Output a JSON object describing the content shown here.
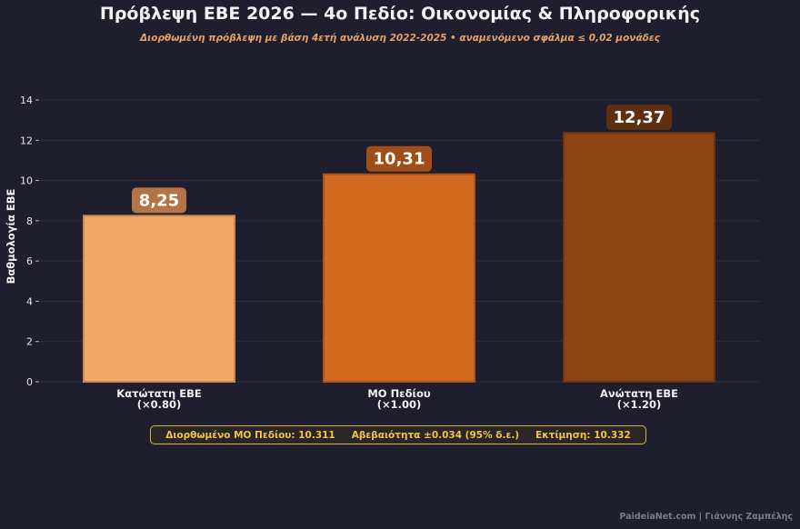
{
  "chart_data": {
    "type": "bar",
    "title": "Πρόβλεψη ΕΒΕ 2026 — 4ο Πεδίο: Οικονομίας & Πληροφορικής",
    "subtitle": "Διορθωμένη πρόβλεψη με βάση 4ετή ανάλυση 2022-2025  •  αναμενόμενο σφάλμα ≤ 0,02 μονάδες",
    "ylabel": "Βαθμολογία ΕΒΕ",
    "ylim": [
      0,
      14
    ],
    "yticks": [
      0,
      2,
      4,
      6,
      8,
      10,
      12,
      14
    ],
    "grid": true,
    "categories": [
      {
        "line1": "Κατώτατη ΕΒΕ",
        "line2": "(×0.80)"
      },
      {
        "line1": "ΜΟ Πεδίου",
        "line2": "(×1.00)"
      },
      {
        "line1": "Ανώτατη ΕΒΕ",
        "line2": "(×1.20)"
      }
    ],
    "values": [
      8.25,
      10.31,
      12.37
    ],
    "value_labels": [
      "8,25",
      "10,31",
      "12,37"
    ],
    "bar_colors": [
      "#f0a868",
      "#d2691e",
      "#8b4513"
    ],
    "bar_edge_colors": [
      "#c98a52",
      "#a8551a",
      "#6b3410"
    ],
    "label_box_colors": [
      "#b57447",
      "#a14e1b",
      "#5e2f10"
    ]
  },
  "stats": {
    "corrected_mean": "Διορθωμένο ΜΟ Πεδίου: 10.311",
    "uncertainty": "Αβεβαιότητα ±0.034 (95% δ.ε.)",
    "estimate": "Εκτίμηση: 10.332"
  },
  "footer": "PaideiaNet.com  |  Γιάννης Ζαμπέλης",
  "colors": {
    "background": "#1e1e2e",
    "title": "#f2f2f2",
    "subtitle": "#e8a066",
    "stats_text": "#f2c14e",
    "stats_border": "#d9b24a"
  }
}
